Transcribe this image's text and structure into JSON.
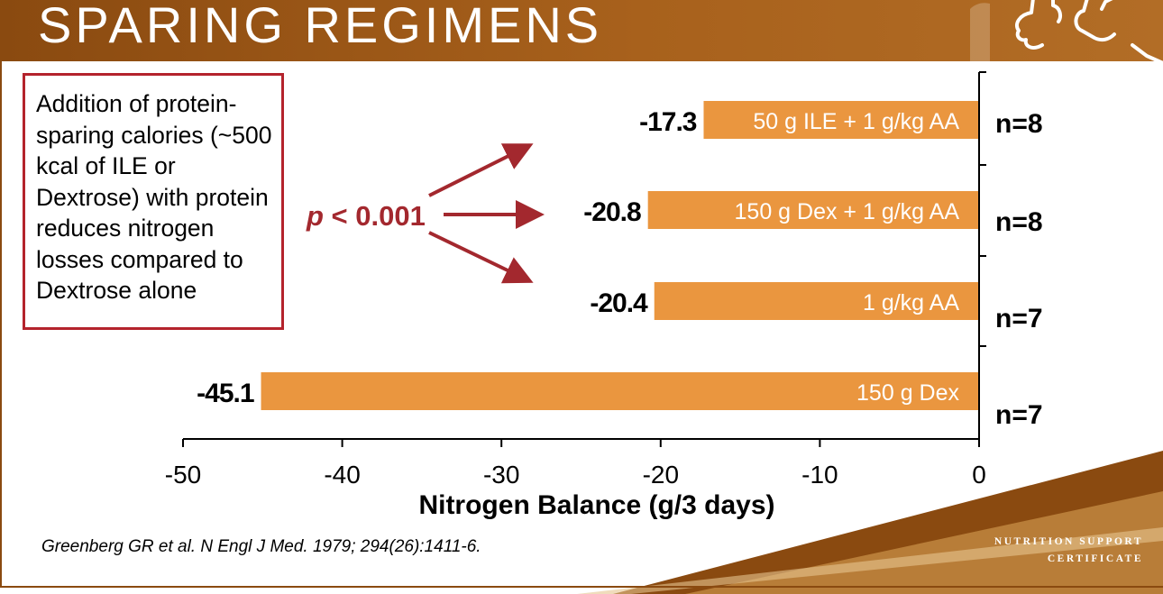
{
  "slide": {
    "title": "SPARING REGIMENS",
    "callout": "Addition of protein-sparing calories (~500 kcal of ILE or Dextrose) with protein reduces nitrogen losses compared to Dextrose alone",
    "p_italic": "p",
    "p_rest": " < 0.001",
    "citation": "Greenberg GR et al. N Engl J Med. 1979; 294(26):1411-6.",
    "brand_line1": "NUTRITION SUPPORT",
    "brand_line2": "CERTIFICATE",
    "colors": {
      "header": "#a15a18",
      "bar": "#ea963f",
      "callout_border": "#b4232c",
      "arrow": "#a3282e"
    }
  },
  "chart_data": {
    "type": "bar",
    "orientation": "horizontal",
    "categories": [
      "50 g ILE + 1 g/kg AA",
      "150 g Dex + 1 g/kg AA",
      "1 g/kg AA",
      "150 g Dex"
    ],
    "values": [
      -17.3,
      -20.8,
      -20.4,
      -45.1
    ],
    "value_labels": [
      "-17.3",
      "-20.8",
      "-20.4",
      "-45.1"
    ],
    "n_labels": [
      "n=8",
      "n=8",
      "n=7",
      "n=7"
    ],
    "xlabel": "Nitrogen Balance (g/3 days)",
    "xlim": [
      -50,
      0
    ],
    "xticks": [
      "-50",
      "-40",
      "-30",
      "-20",
      "-10",
      "0"
    ],
    "grid": false,
    "legend": "none"
  }
}
